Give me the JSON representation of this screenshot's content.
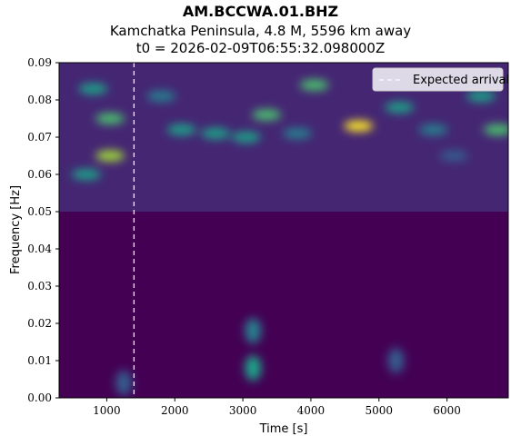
{
  "header": {
    "title": "AM.BCCWA.01.BHZ",
    "subtitle": "Kamchatka Peninsula, 4.8 M, 5596 km away",
    "t0_line": "t0 = 2026-02-09T06:55:32.098000Z"
  },
  "chart_data": {
    "type": "heatmap",
    "title": "AM.BCCWA.01.BHZ",
    "xlabel": "Time [s]",
    "ylabel": "Frequency [Hz]",
    "xlim": [
      300,
      6900
    ],
    "ylim": [
      0.0,
      0.09
    ],
    "x_ticks": [
      1000,
      2000,
      3000,
      4000,
      5000,
      6000
    ],
    "y_ticks": [
      "0.00",
      "0.01",
      "0.02",
      "0.03",
      "0.04",
      "0.05",
      "0.06",
      "0.07",
      "0.08",
      "0.09"
    ],
    "colormap": "viridis",
    "expected_arrival_s": 1400,
    "legend": {
      "placement": "top-right",
      "entries": [
        "Expected arrival"
      ]
    },
    "grid": false,
    "hotspots": [
      {
        "time_s": 1050,
        "freq_hz": 0.075,
        "intensity": 0.75
      },
      {
        "time_s": 1050,
        "freq_hz": 0.065,
        "intensity": 0.8
      },
      {
        "time_s": 700,
        "freq_hz": 0.06,
        "intensity": 0.55
      },
      {
        "time_s": 800,
        "freq_hz": 0.083,
        "intensity": 0.5
      },
      {
        "time_s": 1800,
        "freq_hz": 0.081,
        "intensity": 0.45
      },
      {
        "time_s": 2100,
        "freq_hz": 0.072,
        "intensity": 0.55
      },
      {
        "time_s": 2600,
        "freq_hz": 0.071,
        "intensity": 0.55
      },
      {
        "time_s": 3050,
        "freq_hz": 0.07,
        "intensity": 0.5
      },
      {
        "time_s": 3350,
        "freq_hz": 0.076,
        "intensity": 0.65
      },
      {
        "time_s": 3800,
        "freq_hz": 0.071,
        "intensity": 0.45
      },
      {
        "time_s": 4050,
        "freq_hz": 0.084,
        "intensity": 0.75
      },
      {
        "time_s": 4700,
        "freq_hz": 0.073,
        "intensity": 0.95
      },
      {
        "time_s": 5300,
        "freq_hz": 0.078,
        "intensity": 0.5
      },
      {
        "time_s": 5800,
        "freq_hz": 0.072,
        "intensity": 0.45
      },
      {
        "time_s": 6500,
        "freq_hz": 0.081,
        "intensity": 0.5
      },
      {
        "time_s": 6750,
        "freq_hz": 0.072,
        "intensity": 0.75
      },
      {
        "time_s": 6100,
        "freq_hz": 0.065,
        "intensity": 0.35
      },
      {
        "time_s": 3150,
        "freq_hz": 0.008,
        "intensity": 0.5
      },
      {
        "time_s": 3150,
        "freq_hz": 0.018,
        "intensity": 0.4
      },
      {
        "time_s": 5250,
        "freq_hz": 0.01,
        "intensity": 0.25
      },
      {
        "time_s": 1250,
        "freq_hz": 0.004,
        "intensity": 0.3
      }
    ]
  },
  "colors": {
    "colormap_stops": [
      "#440154",
      "#46337e",
      "#365c8d",
      "#277f8e",
      "#1fa187",
      "#4ac16d",
      "#a0da39",
      "#fde725"
    ],
    "arrival_line": "#ffffff",
    "legend_bg": "#ebe8f0"
  }
}
